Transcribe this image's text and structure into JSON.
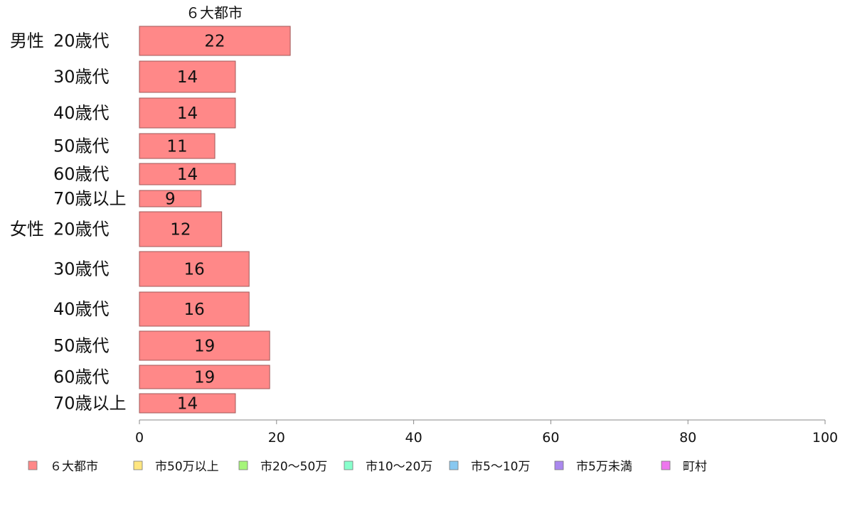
{
  "chart_data": {
    "type": "bar",
    "orientation": "horizontal",
    "column_title": "６大都市",
    "groups": [
      {
        "name": "男性",
        "categories": [
          "20歳代",
          "30歳代",
          "40歳代",
          "50歳代",
          "60歳代",
          "70歳以上"
        ]
      },
      {
        "name": "女性",
        "categories": [
          "20歳代",
          "30歳代",
          "40歳代",
          "50歳代",
          "60歳代",
          "70歳以上"
        ]
      }
    ],
    "series": [
      {
        "name": "６大都市",
        "color": "#ff8888",
        "values": [
          22,
          14,
          14,
          11,
          14,
          9,
          12,
          16,
          16,
          19,
          19,
          14
        ],
        "labels": [
          "22",
          "14",
          "14",
          "11",
          "14",
          "9",
          "12",
          "16",
          "16",
          "19",
          "19",
          "14"
        ]
      }
    ],
    "xlim": [
      0,
      100
    ],
    "xticks": [
      "0",
      "20",
      "40",
      "60",
      "80",
      "100"
    ],
    "grid": false,
    "legend_position": "bottom",
    "legend": [
      {
        "name": "６大都市",
        "color": "#ff8888"
      },
      {
        "name": "市50万以上",
        "color": "#ffe680"
      },
      {
        "name": "市20〜50万",
        "color": "#a6f57a"
      },
      {
        "name": "市10〜20万",
        "color": "#88ffcc"
      },
      {
        "name": "市5〜10万",
        "color": "#88c8f0"
      },
      {
        "name": "市5万未満",
        "color": "#aa88ee"
      },
      {
        "name": "町村",
        "color": "#ee77ee"
      }
    ]
  }
}
